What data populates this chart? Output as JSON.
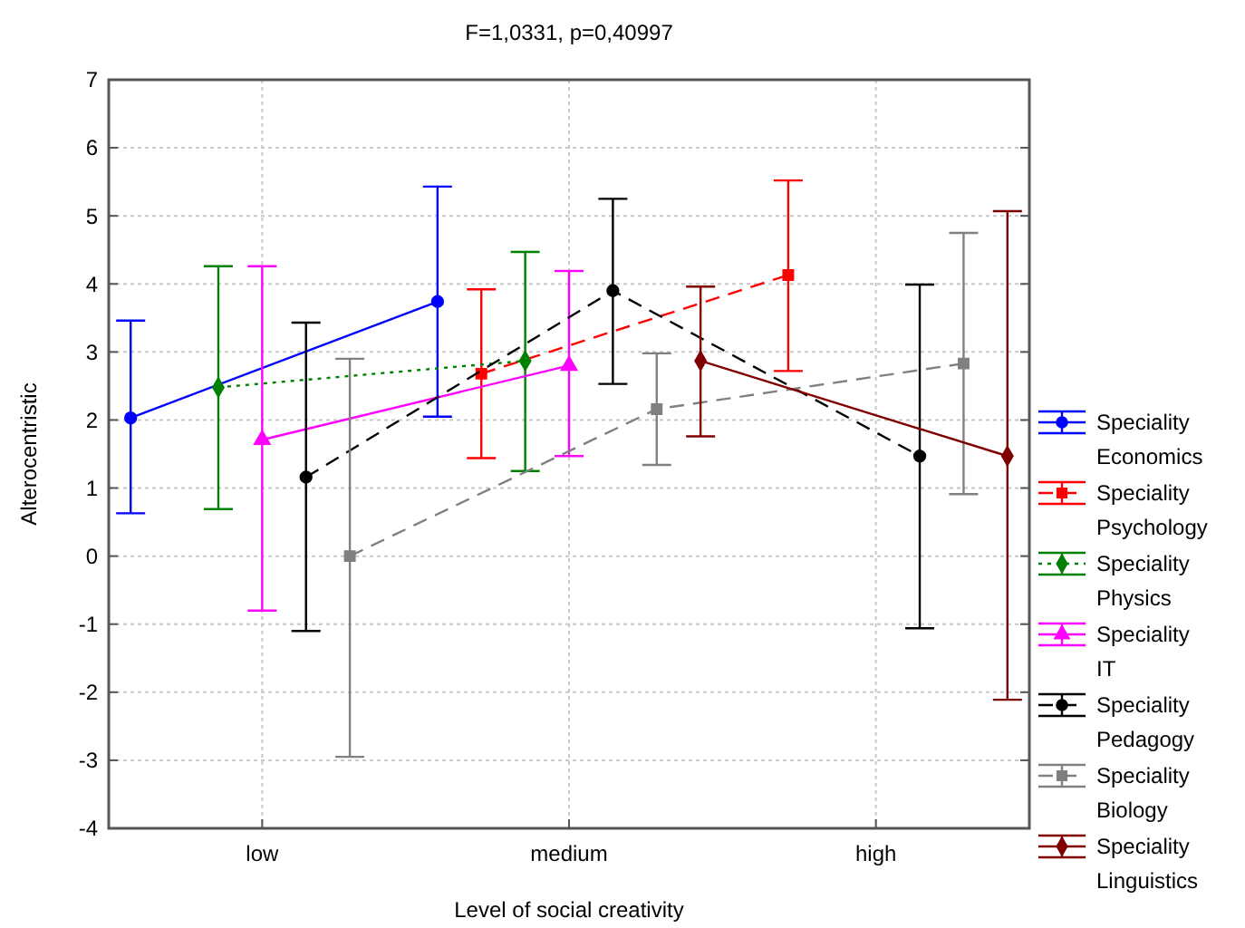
{
  "chart_data": {
    "type": "line",
    "title": "F=1,0331, p=0,40997",
    "xlabel": "Level of social creativity",
    "ylabel": "Alterocentristic",
    "categories": [
      null,
      null,
      null,
      "low",
      null,
      null,
      null,
      null,
      null,
      null,
      "medium",
      null,
      null,
      null,
      null,
      null,
      null,
      "high",
      null,
      null,
      null
    ],
    "ylim": [
      -4,
      7
    ],
    "yticks": [
      -4,
      -3,
      -2,
      -1,
      0,
      1,
      2,
      3,
      4,
      5,
      6,
      7
    ],
    "grid": true,
    "legend": "right",
    "series": [
      {
        "name": "Speciality\nEconomics",
        "color": "#0000ff",
        "marker": "circle",
        "line_style": "solid",
        "values": [
          2.03,
          null,
          null,
          null,
          null,
          null,
          null,
          3.74,
          null,
          null,
          null,
          null,
          null,
          null,
          null,
          null,
          null,
          null,
          null,
          null,
          null
        ],
        "errors": [
          [
            0.63,
            3.46
          ],
          null,
          null,
          null,
          null,
          null,
          null,
          [
            2.05,
            5.43
          ],
          null,
          null,
          null,
          null,
          null,
          null,
          null,
          null,
          null,
          null,
          null,
          null,
          null
        ]
      },
      {
        "name": "Speciality\nPsychology",
        "color": "#ff0000",
        "marker": "square",
        "line_style": "dashed",
        "values": [
          null,
          null,
          null,
          null,
          null,
          null,
          null,
          null,
          2.68,
          null,
          null,
          null,
          null,
          null,
          null,
          4.13,
          null,
          null,
          null,
          null,
          null
        ],
        "errors": [
          null,
          null,
          null,
          null,
          null,
          null,
          null,
          null,
          [
            1.44,
            3.92
          ],
          null,
          null,
          null,
          null,
          null,
          null,
          [
            2.72,
            5.52
          ],
          null,
          null,
          null,
          null,
          null
        ]
      },
      {
        "name": "Speciality\nPhysics",
        "color": "#008000",
        "marker": "diamond",
        "line_style": "dotted",
        "values": [
          null,
          null,
          2.48,
          null,
          null,
          null,
          null,
          null,
          null,
          2.87,
          null,
          null,
          null,
          null,
          null,
          null,
          null,
          null,
          null,
          null,
          null
        ],
        "errors": [
          null,
          null,
          [
            0.69,
            4.26
          ],
          null,
          null,
          null,
          null,
          null,
          null,
          [
            1.25,
            4.47
          ],
          null,
          null,
          null,
          null,
          null,
          null,
          null,
          null,
          null,
          null,
          null
        ]
      },
      {
        "name": "Speciality\nIT",
        "color": "#ff00ff",
        "marker": "triangle",
        "line_style": "solid",
        "values": [
          null,
          null,
          null,
          1.71,
          null,
          null,
          null,
          null,
          null,
          null,
          2.8,
          null,
          null,
          null,
          null,
          null,
          null,
          null,
          null,
          null,
          null
        ],
        "errors": [
          null,
          null,
          null,
          [
            -0.8,
            4.26
          ],
          null,
          null,
          null,
          null,
          null,
          null,
          [
            1.47,
            4.19
          ],
          null,
          null,
          null,
          null,
          null,
          null,
          null,
          null,
          null,
          null
        ]
      },
      {
        "name": "Speciality\nPedagogy",
        "color": "#000000",
        "marker": "circle",
        "line_style": "dashed",
        "values": [
          null,
          null,
          null,
          null,
          1.16,
          null,
          null,
          null,
          null,
          null,
          null,
          3.9,
          null,
          null,
          null,
          null,
          null,
          null,
          1.47,
          null,
          null
        ],
        "errors": [
          null,
          null,
          null,
          null,
          [
            -1.1,
            3.43
          ],
          null,
          null,
          null,
          null,
          null,
          null,
          [
            2.53,
            5.25
          ],
          null,
          null,
          null,
          null,
          null,
          null,
          [
            -1.06,
            3.99
          ],
          null,
          null
        ]
      },
      {
        "name": "Speciality\nBiology",
        "color": "#808080",
        "marker": "square",
        "line_style": "dashed",
        "values": [
          null,
          null,
          null,
          null,
          null,
          0,
          null,
          null,
          null,
          null,
          null,
          null,
          2.16,
          null,
          null,
          null,
          null,
          null,
          null,
          2.83,
          null
        ],
        "errors": [
          null,
          null,
          null,
          null,
          null,
          [
            -2.95,
            2.9
          ],
          null,
          null,
          null,
          null,
          null,
          null,
          [
            1.34,
            2.98
          ],
          null,
          null,
          null,
          null,
          null,
          null,
          [
            0.91,
            4.75
          ],
          null
        ]
      },
      {
        "name": "Speciality\nLinguistics",
        "color": "#800000",
        "marker": "diamond",
        "line_style": "solid",
        "values": [
          null,
          null,
          null,
          null,
          null,
          null,
          null,
          null,
          null,
          null,
          null,
          null,
          null,
          2.87,
          null,
          null,
          null,
          null,
          null,
          null,
          1.47
        ],
        "errors": [
          null,
          null,
          null,
          null,
          null,
          null,
          null,
          null,
          null,
          null,
          null,
          null,
          null,
          [
            1.76,
            3.96
          ],
          null,
          null,
          null,
          null,
          null,
          null,
          [
            -2.11,
            5.07
          ]
        ]
      }
    ]
  }
}
